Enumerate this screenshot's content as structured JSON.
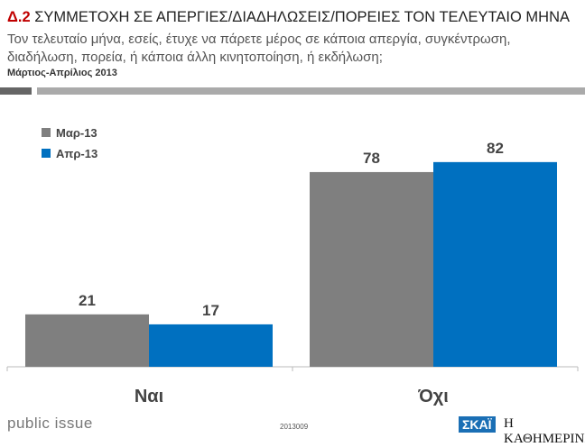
{
  "header": {
    "number": "Δ.2",
    "title": "ΣΥΜΜΕΤΟΧΗ ΣΕ ΑΠΕΡΓΙΕΣ/ΔΙΑΔΗΛΩΣΕΙΣ/ΠΟΡΕΙΕΣ ΤΟΝ ΤΕΛΕΥΤΑΙΟ ΜΗΝΑ",
    "question": "Τον τελευταίο μήνα, εσείς, έτυχε να πάρετε μέρος σε κάποια απεργία, συγκέντρωση, διαδήλωση, πορεία, ή κάποια άλλη κινητοποίηση, ή εκδήλωση;",
    "period": "Μάρτιος-Απρίλιος 2013"
  },
  "chart_data": {
    "type": "bar",
    "categories": [
      "Ναι",
      "Όχι"
    ],
    "series": [
      {
        "name": "Μαρ-13",
        "values": [
          21,
          78
        ],
        "color": "#7f7f7f"
      },
      {
        "name": "Απρ-13",
        "values": [
          17,
          82
        ],
        "color": "#0070c0"
      }
    ],
    "ylim": [
      0,
      100
    ],
    "legend": "top-left",
    "grid": false
  },
  "footer": {
    "brand": "public issue",
    "code": "2013009",
    "logo1": "ΣΚΑΪ",
    "logo2": "Η ΚΑΘΗΜΕΡΙΝΗ"
  }
}
